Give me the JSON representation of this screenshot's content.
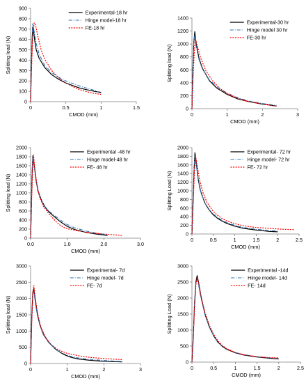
{
  "colors": {
    "experimental": "#000000",
    "hinge": "#2e74b5",
    "fe": "#ff0000",
    "axis": "#7f7f7f"
  },
  "chart_data": [
    {
      "type": "line",
      "xlabel": "CMOD (mm)",
      "ylabel": "Splitting load (N)",
      "xlim": [
        0,
        1.5
      ],
      "ylim": [
        0,
        900
      ],
      "xticks": [
        0,
        0.5,
        1,
        1.5
      ],
      "yticks": [
        0,
        100,
        200,
        300,
        400,
        500,
        600,
        700,
        800,
        900
      ],
      "xtick_labels": [
        "0",
        "0.5",
        "1",
        "1.5"
      ],
      "ytick_labels": [
        "0",
        "100",
        "200",
        "300",
        "400",
        "500",
        "600",
        "700",
        "800",
        "900"
      ],
      "legend_position": "top-right",
      "grid": false,
      "series": [
        {
          "name": "Experimental-18 hr",
          "style": "solid",
          "color": "experimental",
          "x": [
            0,
            0.01,
            0.02,
            0.03,
            0.04,
            0.06,
            0.08,
            0.12,
            0.2,
            0.3,
            0.4,
            0.5,
            0.6,
            0.7,
            0.8,
            0.9,
            1.0
          ],
          "y": [
            0,
            300,
            560,
            720,
            690,
            580,
            500,
            420,
            330,
            260,
            215,
            180,
            155,
            130,
            115,
            100,
            90
          ]
        },
        {
          "name": "Hinge model-18 hr",
          "style": "dashdot",
          "color": "hinge",
          "x": [
            0,
            0.01,
            0.02,
            0.03,
            0.05,
            0.08,
            0.12,
            0.2,
            0.3,
            0.4,
            0.5,
            0.6,
            0.7,
            0.8,
            0.9,
            1.0
          ],
          "y": [
            0,
            320,
            590,
            750,
            680,
            560,
            460,
            350,
            280,
            235,
            200,
            175,
            150,
            130,
            110,
            80
          ]
        },
        {
          "name": "FE-18 hr",
          "style": "dotted",
          "color": "fe",
          "x": [
            0,
            0.01,
            0.03,
            0.05,
            0.07,
            0.1,
            0.15,
            0.2,
            0.3,
            0.4,
            0.5,
            0.6,
            0.7,
            0.8,
            0.9,
            1.0
          ],
          "y": [
            0,
            250,
            620,
            760,
            740,
            640,
            500,
            410,
            300,
            230,
            180,
            145,
            115,
            95,
            80,
            70
          ]
        }
      ]
    },
    {
      "type": "line",
      "xlabel": "CMOD (mm)",
      "ylabel": "Splitting load (N)",
      "xlim": [
        0,
        3
      ],
      "ylim": [
        0,
        1400
      ],
      "xticks": [
        0,
        1,
        2,
        3
      ],
      "yticks": [
        0,
        200,
        400,
        600,
        800,
        1000,
        1200,
        1400
      ],
      "xtick_labels": [
        "0",
        "1",
        "2",
        "3"
      ],
      "ytick_labels": [
        "0",
        "200",
        "400",
        "600",
        "800",
        "1000",
        "1200",
        "1400"
      ],
      "legend_position": "top-right",
      "grid": false,
      "series": [
        {
          "name": "Experimental-30 hr",
          "style": "solid",
          "color": "experimental",
          "x": [
            0,
            0.02,
            0.05,
            0.08,
            0.12,
            0.2,
            0.3,
            0.5,
            0.7,
            1.0,
            1.3,
            1.6,
            2.0,
            2.4
          ],
          "y": [
            0,
            500,
            1000,
            1190,
            1000,
            780,
            620,
            430,
            320,
            220,
            150,
            110,
            70,
            40
          ]
        },
        {
          "name": "Hinge model 30 hr",
          "style": "dashdot",
          "color": "hinge",
          "x": [
            0,
            0.02,
            0.05,
            0.08,
            0.12,
            0.2,
            0.3,
            0.5,
            0.7,
            1.0,
            1.3,
            1.6,
            2.0,
            2.4
          ],
          "y": [
            0,
            520,
            1010,
            1140,
            960,
            760,
            610,
            440,
            340,
            240,
            170,
            120,
            80,
            50
          ]
        },
        {
          "name": "FE-30 hr",
          "style": "dotted",
          "color": "fe",
          "x": [
            0,
            0.03,
            0.07,
            0.1,
            0.15,
            0.25,
            0.4,
            0.6,
            0.8,
            1.0,
            1.3,
            1.6,
            2.0,
            2.4
          ],
          "y": [
            0,
            450,
            900,
            1080,
            980,
            780,
            580,
            420,
            310,
            230,
            160,
            110,
            70,
            40
          ]
        }
      ]
    },
    {
      "type": "line",
      "xlabel": "CMOD (mm)",
      "ylabel": "Splitting load (N)",
      "xlim": [
        0,
        3.0
      ],
      "ylim": [
        0,
        2000
      ],
      "xticks": [
        0,
        1,
        2,
        3
      ],
      "yticks": [
        0,
        200,
        400,
        600,
        800,
        1000,
        1200,
        1400,
        1600,
        1800,
        2000
      ],
      "xtick_labels": [
        "0.0",
        "1.0",
        "2.0",
        "3.0"
      ],
      "ytick_labels": [
        "0",
        "200",
        "400",
        "600",
        "800",
        "1000",
        "1200",
        "1400",
        "1600",
        "1800",
        "2000"
      ],
      "legend_position": "top-right",
      "grid": false,
      "series": [
        {
          "name": "Experimental -48 hr",
          "style": "solid",
          "color": "experimental",
          "x": [
            0,
            0.02,
            0.04,
            0.06,
            0.1,
            0.15,
            0.2,
            0.3,
            0.4,
            0.5,
            0.6,
            0.7,
            0.8,
            1.0,
            1.2,
            1.5,
            1.8,
            2.1
          ],
          "y": [
            0,
            700,
            1400,
            1820,
            1600,
            1280,
            1050,
            830,
            680,
            580,
            510,
            440,
            370,
            260,
            190,
            130,
            90,
            60
          ]
        },
        {
          "name": "Hinge model-48 hr",
          "style": "dashdot",
          "color": "hinge",
          "x": [
            0,
            0.02,
            0.04,
            0.06,
            0.1,
            0.15,
            0.2,
            0.3,
            0.4,
            0.5,
            0.6,
            0.7,
            0.8,
            1.0,
            1.2,
            1.5,
            1.8,
            2.1
          ],
          "y": [
            0,
            750,
            1450,
            1790,
            1560,
            1250,
            1030,
            820,
            690,
            600,
            530,
            470,
            410,
            300,
            230,
            160,
            110,
            70
          ]
        },
        {
          "name": "FE- 48 hr",
          "style": "dotted",
          "color": "fe",
          "x": [
            0,
            0.03,
            0.06,
            0.08,
            0.12,
            0.18,
            0.25,
            0.35,
            0.5,
            0.6,
            0.7,
            0.8,
            0.9,
            1.0,
            1.3,
            1.6,
            2.0,
            2.5
          ],
          "y": [
            0,
            900,
            1650,
            1840,
            1500,
            1150,
            900,
            700,
            540,
            450,
            360,
            290,
            240,
            210,
            160,
            120,
            90,
            60
          ]
        }
      ]
    },
    {
      "type": "line",
      "xlabel": "CMOD (mm)",
      "ylabel": "Splitting Load (N)",
      "xlim": [
        0,
        2.5
      ],
      "ylim": [
        0,
        2000
      ],
      "xticks": [
        0,
        0.5,
        1,
        1.5,
        2,
        2.5
      ],
      "yticks": [
        0,
        200,
        400,
        600,
        800,
        1000,
        1200,
        1400,
        1600,
        1800,
        2000
      ],
      "xtick_labels": [
        "0",
        "0.5",
        "1",
        "1.5",
        "2",
        "2.5"
      ],
      "ytick_labels": [
        "0",
        "200",
        "400",
        "600",
        "800",
        "1000",
        "1200",
        "1400",
        "1600",
        "1800",
        "2000"
      ],
      "legend_position": "top-right",
      "grid": false,
      "series": [
        {
          "name": "Experimental- 72 hr",
          "style": "solid",
          "color": "experimental",
          "x": [
            0,
            0.02,
            0.05,
            0.07,
            0.1,
            0.15,
            0.2,
            0.3,
            0.4,
            0.5,
            0.6,
            0.7,
            0.8,
            1.0,
            1.2,
            1.5,
            1.8,
            2.0
          ],
          "y": [
            0,
            600,
            1500,
            1880,
            1650,
            1250,
            1000,
            720,
            560,
            440,
            360,
            300,
            250,
            180,
            130,
            90,
            60,
            50
          ]
        },
        {
          "name": "Hinge model- 72 hr",
          "style": "dashdot",
          "color": "hinge",
          "x": [
            0,
            0.02,
            0.05,
            0.07,
            0.1,
            0.15,
            0.2,
            0.3,
            0.4,
            0.5,
            0.6,
            0.7,
            0.8,
            1.0,
            1.2,
            1.5,
            1.8,
            2.0
          ],
          "y": [
            0,
            650,
            1550,
            1800,
            1600,
            1230,
            990,
            720,
            570,
            460,
            380,
            320,
            270,
            200,
            150,
            110,
            80,
            70
          ]
        },
        {
          "name": "FE- 72 hr",
          "style": "dotted",
          "color": "fe",
          "x": [
            0,
            0.03,
            0.06,
            0.09,
            0.12,
            0.18,
            0.25,
            0.35,
            0.5,
            0.6,
            0.7,
            0.8,
            1.0,
            1.2,
            1.5,
            1.8,
            2.1,
            2.4
          ],
          "y": [
            0,
            700,
            1500,
            1780,
            1600,
            1250,
            980,
            730,
            520,
            430,
            360,
            310,
            240,
            190,
            150,
            130,
            110,
            100
          ]
        }
      ]
    },
    {
      "type": "line",
      "xlabel": "CMOD (mm)",
      "ylabel": "Splitting load (N)",
      "xlim": [
        0,
        3
      ],
      "ylim": [
        0,
        3000
      ],
      "xticks": [
        0,
        1,
        2,
        3
      ],
      "yticks": [
        0,
        500,
        1000,
        1500,
        2000,
        2500,
        3000
      ],
      "xtick_labels": [
        "0",
        "1",
        "2",
        "3"
      ],
      "ytick_labels": [
        "0",
        "500",
        "1000",
        "1500",
        "2000",
        "2500",
        "3000"
      ],
      "legend_position": "top-right",
      "grid": false,
      "series": [
        {
          "name": "Experimental- 7d",
          "style": "solid",
          "color": "experimental",
          "x": [
            0,
            0.03,
            0.06,
            0.09,
            0.12,
            0.18,
            0.25,
            0.35,
            0.5,
            0.7,
            0.9,
            1.1,
            1.3,
            1.6,
            1.9,
            2.2,
            2.5
          ],
          "y": [
            0,
            1400,
            2200,
            2300,
            2000,
            1550,
            1200,
            900,
            650,
            420,
            280,
            190,
            140,
            100,
            75,
            60,
            50
          ]
        },
        {
          "name": "Hinge model- 7d",
          "style": "dashdot",
          "color": "hinge",
          "x": [
            0,
            0.03,
            0.06,
            0.09,
            0.12,
            0.18,
            0.25,
            0.35,
            0.5,
            0.7,
            0.9,
            1.1,
            1.3,
            1.6,
            1.9,
            2.2,
            2.5
          ],
          "y": [
            0,
            1300,
            2100,
            2250,
            1950,
            1500,
            1180,
            880,
            630,
            420,
            300,
            220,
            170,
            130,
            100,
            80,
            60
          ]
        },
        {
          "name": "FE- 7d",
          "style": "dotted",
          "color": "fe",
          "x": [
            0,
            0.03,
            0.06,
            0.09,
            0.13,
            0.2,
            0.28,
            0.4,
            0.55,
            0.75,
            1.0,
            1.3,
            1.6,
            1.9,
            2.2,
            2.5
          ],
          "y": [
            0,
            1200,
            2200,
            2400,
            2000,
            1500,
            1120,
            820,
            590,
            420,
            310,
            240,
            190,
            160,
            140,
            120
          ]
        }
      ]
    },
    {
      "type": "line",
      "xlabel": "CMOD (mm)",
      "ylabel": "Splitting Load (N)",
      "xlim": [
        0,
        2.5
      ],
      "ylim": [
        0,
        3000
      ],
      "xticks": [
        0,
        0.5,
        1,
        1.5,
        2,
        2.5
      ],
      "yticks": [
        0,
        500,
        1000,
        1500,
        2000,
        2500,
        3000
      ],
      "xtick_labels": [
        "0",
        "0.5",
        "1",
        "1.5",
        "2",
        "2.5"
      ],
      "ytick_labels": [
        "0",
        "500",
        "1000",
        "1500",
        "2000",
        "2500",
        "3000"
      ],
      "legend_position": "top-right",
      "grid": false,
      "series": [
        {
          "name": "Experimental -14d",
          "style": "solid",
          "color": "experimental",
          "x": [
            0,
            0.03,
            0.06,
            0.09,
            0.12,
            0.15,
            0.2,
            0.3,
            0.4,
            0.5,
            0.6,
            0.7,
            0.8,
            1.0,
            1.2,
            1.5,
            1.8,
            2.0
          ],
          "y": [
            0,
            800,
            1800,
            2500,
            2700,
            2500,
            2100,
            1500,
            1100,
            820,
            620,
            490,
            400,
            290,
            220,
            160,
            120,
            100
          ]
        },
        {
          "name": "Hinge model- 14d",
          "style": "dashdot",
          "color": "hinge",
          "x": [
            0,
            0.03,
            0.06,
            0.09,
            0.12,
            0.15,
            0.2,
            0.3,
            0.4,
            0.5,
            0.6,
            0.7,
            0.8,
            1.0,
            1.2,
            1.5,
            1.8,
            2.0
          ],
          "y": [
            0,
            850,
            1850,
            2450,
            2600,
            2420,
            2050,
            1480,
            1090,
            820,
            630,
            500,
            410,
            300,
            230,
            170,
            130,
            110
          ]
        },
        {
          "name": "FE- 14d",
          "style": "dotted",
          "color": "fe",
          "x": [
            0,
            0.03,
            0.06,
            0.09,
            0.12,
            0.16,
            0.22,
            0.3,
            0.4,
            0.5,
            0.6,
            0.7,
            0.8,
            1.0,
            1.2,
            1.5,
            1.8,
            2.0
          ],
          "y": [
            0,
            700,
            1700,
            2400,
            2650,
            2450,
            2000,
            1550,
            1150,
            870,
            660,
            520,
            420,
            300,
            230,
            170,
            140,
            130
          ]
        }
      ]
    }
  ]
}
